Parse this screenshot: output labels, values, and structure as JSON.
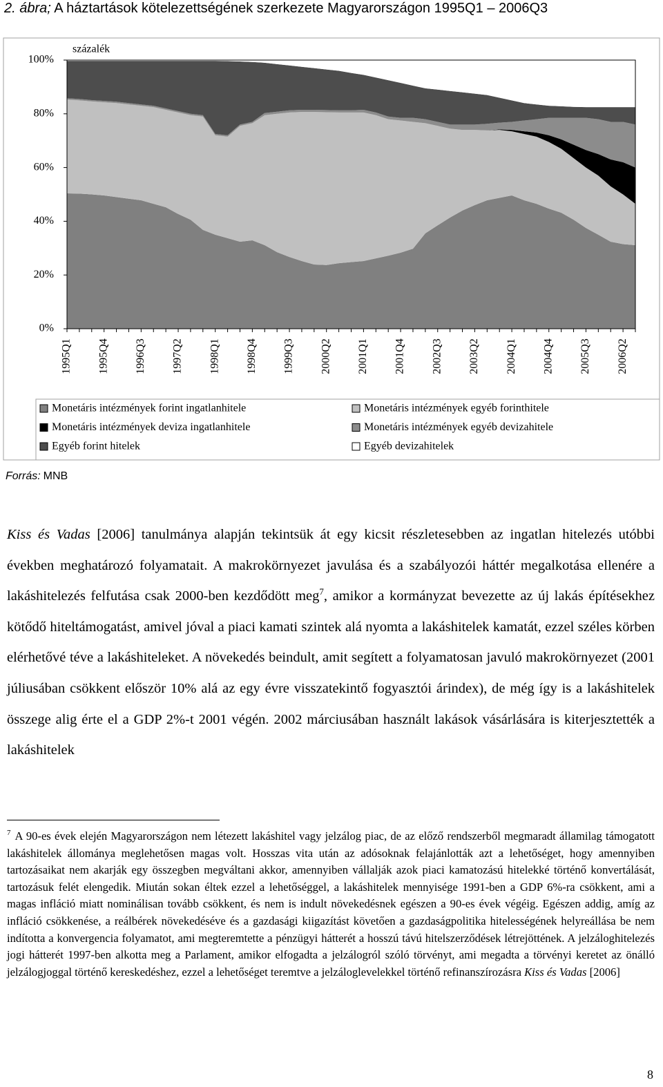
{
  "chart_data": {
    "type": "stacked-area",
    "figure_label": "2. ábra;",
    "title": "A háztartások kötelezettségének szerkezete Magyarországon 1995Q1 – 2006Q3",
    "y_unit_label": "százalék",
    "categories": [
      "1995Q1",
      null,
      null,
      "1995Q4",
      null,
      null,
      "1996Q3",
      null,
      null,
      "1997Q2",
      null,
      null,
      "1998Q1",
      null,
      null,
      "1998Q4",
      null,
      null,
      "1999Q3",
      null,
      null,
      "2000Q2",
      null,
      null,
      "2001Q1",
      null,
      null,
      "2001Q4",
      null,
      null,
      "2002Q3",
      null,
      null,
      "2003Q2",
      null,
      null,
      "2004Q1",
      null,
      null,
      "2004Q4",
      null,
      null,
      "2005Q3",
      null,
      null,
      "2006Q2",
      null
    ],
    "ylim": [
      0,
      100
    ],
    "yticks": [
      {
        "value": 0,
        "label": "0%"
      },
      {
        "value": 20,
        "label": "20%"
      },
      {
        "value": 40,
        "label": "40%"
      },
      {
        "value": 60,
        "label": "60%"
      },
      {
        "value": 80,
        "label": "80%"
      },
      {
        "value": 100,
        "label": "100%"
      }
    ],
    "grid": false,
    "series": [
      {
        "name": "Monetáris intézmények forint ingatlanhitele",
        "color": "#808080",
        "values": [
          50.4,
          50.3,
          50,
          49.6,
          49,
          48.4,
          47.8,
          46.5,
          45.2,
          42.7,
          40.6,
          36.8,
          35,
          33.7,
          32.4,
          32.9,
          31.1,
          28.5,
          26.7,
          25.2,
          23.9,
          23.7,
          24.4,
          24.8,
          25.2,
          26.2,
          27.2,
          28.3,
          29.8,
          35.5,
          38.5,
          41.4,
          44,
          46,
          47.8,
          48.7,
          49.6,
          47.8,
          46.5,
          44.7,
          43.2,
          40.6,
          37.5,
          35,
          32.4,
          31.5,
          31.1
        ]
      },
      {
        "name": "Monetáris intézmények egyéb forinthitele",
        "color": "#c0c0c0",
        "values": [
          34.9,
          34.7,
          34.6,
          34.7,
          35,
          35.1,
          35.2,
          36,
          36.3,
          37.8,
          38.9,
          42.2,
          37,
          37.8,
          43.1,
          43.6,
          48.4,
          51.5,
          53.8,
          55.5,
          56.8,
          56.9,
          56.1,
          55.7,
          55.3,
          53.3,
          50.8,
          49.2,
          47.2,
          41,
          37,
          33.1,
          30,
          28,
          26,
          25.3,
          23.9,
          24.7,
          25,
          24.8,
          23.8,
          22.9,
          22.5,
          22,
          20.6,
          18.5,
          15.4
        ]
      },
      {
        "name": "Monetáris intézmények deviza ingatlanhitele",
        "color": "#000000",
        "values": [
          0,
          0,
          0,
          0,
          0,
          0,
          0,
          0,
          0,
          0,
          0,
          0,
          0,
          0,
          0,
          0,
          0,
          0,
          0,
          0,
          0,
          0,
          0,
          0,
          0,
          0,
          0,
          0,
          0,
          0,
          0,
          0,
          0,
          0,
          0,
          0.2,
          0.5,
          1,
          1.5,
          2.5,
          3.5,
          5,
          6.5,
          8,
          10,
          12,
          13.5
        ]
      },
      {
        "name": "Monetáris intézmények egyéb devizahitele",
        "color": "#8c8c8c",
        "values": [
          0.5,
          0.5,
          0.5,
          0.5,
          0.5,
          0.5,
          0.5,
          0.5,
          0.5,
          0.5,
          0.5,
          0.5,
          0.5,
          0.5,
          0.5,
          0.5,
          0.8,
          0.8,
          0.8,
          0.8,
          0.8,
          0.8,
          0.8,
          0.8,
          1,
          1,
          1,
          1,
          1.5,
          1.5,
          1.5,
          1.5,
          2,
          2,
          2.5,
          2.5,
          3,
          4,
          5,
          6.5,
          8,
          10,
          12,
          13,
          14,
          15,
          16
        ]
      },
      {
        "name": "Egyéb forint hitelek",
        "color": "#4d4d4d",
        "values": [
          13.9,
          14.2,
          14.6,
          14.9,
          15.2,
          15.7,
          16.2,
          16.7,
          17.7,
          18.7,
          19.7,
          20.2,
          27.2,
          27.6,
          23.5,
          22.3,
          18.7,
          17.7,
          16.7,
          16,
          15.5,
          15.1,
          14.7,
          13.9,
          13,
          13,
          13.5,
          13,
          12,
          11.5,
          12,
          12.5,
          12,
          11.5,
          10.7,
          9.3,
          8,
          6.5,
          5.5,
          4.5,
          4.3,
          4.1,
          4,
          4.5,
          5.5,
          5.5,
          6.5
        ]
      },
      {
        "name": "Egyéb devizahitelek",
        "color": "#ffffff",
        "values": [
          0.3,
          0.3,
          0.3,
          0.3,
          0.3,
          0.3,
          0.3,
          0.3,
          0.3,
          0.3,
          0.3,
          0.3,
          0.3,
          0.4,
          0.5,
          0.7,
          1,
          1.5,
          2,
          2.5,
          3,
          3.5,
          4,
          4.8,
          5.5,
          6.5,
          7.5,
          8.5,
          9.5,
          10.5,
          11,
          11.5,
          12,
          12.5,
          13,
          14,
          15,
          16,
          16.5,
          17,
          17.2,
          17.4,
          17.5,
          17.5,
          17.5,
          17.5,
          17.5
        ]
      }
    ],
    "source_label": "Forrás:",
    "source": "MNB"
  },
  "body": {
    "citation": "Kiss és Vadas",
    "text1": " [2006] tanulmánya alapján tekintsük át egy kicsit részletesebben az ingatlan hitelezés utóbbi években meghatározó folyamatait. A makrokörnyezet javulása és a szabályozói háttér megalkotása ellenére a lakáshitelezés felfutása csak 2000-ben kezdődött meg",
    "footnote_ref": "7",
    "text2": ", amikor a kormányzat bevezette az új lakás építésekhez kötődő hiteltámogatást, amivel jóval a piaci kamati szintek alá nyomta a lakáshitelek kamatát, ezzel széles körben elérhetővé téve a lakáshiteleket. A növekedés beindult, amit segített a folyamatosan javuló makrokörnyezet (2001 júliusában csökkent először 10% alá az egy évre visszatekintő fogyasztói árindex), de még így is a lakáshitelek összege alig érte el a GDP 2%-t 2001 végén. 2002 márciusában használt lakások vásárlására is kiterjesztették a lakáshitelek"
  },
  "footnote": {
    "number": "7",
    "text": "A 90-es évek elején Magyarországon nem létezett lakáshitel vagy jelzálog piac, de az előző rendszerből megmaradt államilag támogatott lakáshitelek állománya meglehetősen magas volt. Hosszas vita után az adósoknak felajánlották azt a lehetőséget, hogy amennyiben tartozásaikat nem akarják egy összegben megváltani akkor, amennyiben vállalják azok piaci kamatozású hitelekké történő konvertálását, tartozásuk felét elengedik. Miután sokan éltek ezzel a lehetőséggel, a lakáshitelek mennyisége 1991-ben a GDP 6%-ra csökkent, ami a magas infláció miatt nominálisan tovább csökkent, és nem is indult növekedésnek egészen a 90-es évek végéig. Egészen addig, amíg az infláció csökkenése, a reálbérek növekedéséve és a gazdasági kiigazítást követően a gazdaságpolitika hitelességének helyreállása be nem indította a konvergencia folyamatot, ami megteremtette a pénzügyi hátterét a hosszú távú hitelszerződések létrejöttének. A jelzáloghitelezés jogi hátterét 1997-ben alkotta meg a Parlament, amikor elfogadta a jelzálogról szóló törvényt, ami megadta a törvényi keretet az önálló jelzálogjoggal történő kereskedéshez, ezzel a lehetőséget teremtve a jelzáloglevelekkel történő refinanszírozásra ",
    "citation": "Kiss és Vadas",
    "citation_year": " [2006]"
  },
  "page_number": "8"
}
